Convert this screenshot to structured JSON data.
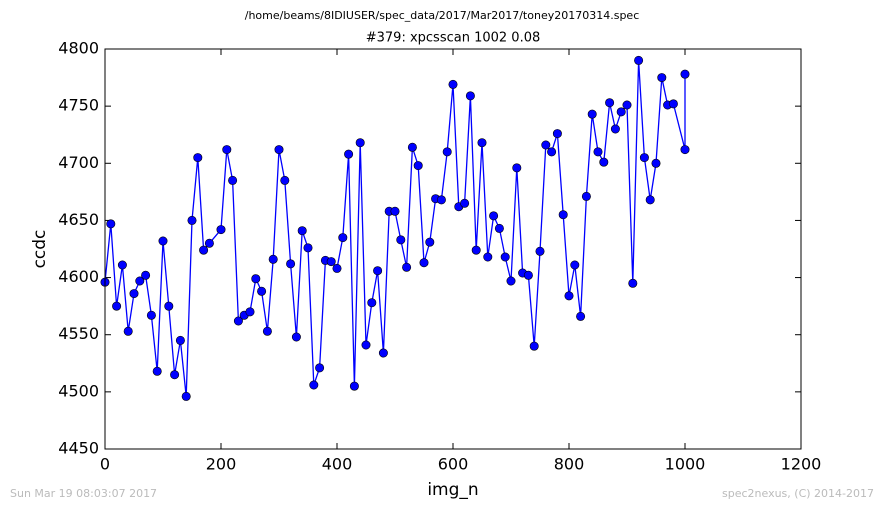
{
  "chart_data": {
    "type": "line",
    "suptitle": "/home/beams/8IDIUSER/spec_data/2017/Mar2017/toney20170314.spec",
    "title": "#379: xpcsscan 1002 0.08",
    "xlabel": "img_n",
    "ylabel": "ccdc",
    "footer_left": "Sun Mar 19 08:03:07 2017",
    "footer_right": "spec2nexus, (C) 2014-2017",
    "xlim": [
      0,
      1200
    ],
    "xticks": [
      0,
      200,
      400,
      600,
      800,
      1000,
      1200
    ],
    "ylim": [
      4450,
      4800
    ],
    "yticks": [
      4450,
      4500,
      4550,
      4600,
      4650,
      4700,
      4750,
      4800
    ],
    "grid": false,
    "x": [
      0,
      10,
      20,
      30,
      40,
      50,
      60,
      70,
      80,
      90,
      100,
      110,
      120,
      130,
      140,
      150,
      160,
      170,
      180,
      200,
      210,
      220,
      230,
      240,
      250,
      260,
      270,
      280,
      290,
      300,
      310,
      320,
      330,
      340,
      350,
      360,
      370,
      380,
      390,
      400,
      410,
      420,
      430,
      440,
      450,
      460,
      470,
      480,
      490,
      500,
      510,
      520,
      530,
      540,
      550,
      560,
      570,
      580,
      590,
      600,
      610,
      620,
      630,
      640,
      650,
      660,
      670,
      680,
      690,
      700,
      710,
      720,
      730,
      740,
      750,
      760,
      770,
      780,
      790,
      800,
      810,
      820,
      830,
      840,
      850,
      860,
      870,
      880,
      890,
      900,
      910,
      920,
      930,
      940,
      950,
      960,
      970,
      980,
      1000,
      1000
    ],
    "series": [
      {
        "name": "ccdc",
        "color": "#0000ff",
        "values": [
          4596,
          4647,
          4575,
          4611,
          4553,
          4586,
          4597,
          4602,
          4567,
          4518,
          4632,
          4575,
          4515,
          4545,
          4496,
          4650,
          4705,
          4624,
          4630,
          4642,
          4712,
          4685,
          4562,
          4567,
          4570,
          4599,
          4588,
          4553,
          4616,
          4712,
          4685,
          4612,
          4548,
          4641,
          4626,
          4506,
          4521,
          4615,
          4614,
          4608,
          4635,
          4708,
          4505,
          4718,
          4541,
          4578,
          4606,
          4534,
          4658,
          4658,
          4633,
          4609,
          4714,
          4698,
          4613,
          4631,
          4669,
          4668,
          4710,
          4769,
          4662,
          4665,
          4759,
          4624,
          4718,
          4618,
          4654,
          4643,
          4618,
          4597,
          4696,
          4604,
          4602,
          4540,
          4623,
          4716,
          4710,
          4726,
          4655,
          4584,
          4611,
          4566,
          4671,
          4743,
          4710,
          4701,
          4753,
          4730,
          4745,
          4751,
          4595,
          4790,
          4705,
          4668,
          4700,
          4775,
          4751,
          4752,
          4712,
          4778
        ]
      }
    ]
  }
}
